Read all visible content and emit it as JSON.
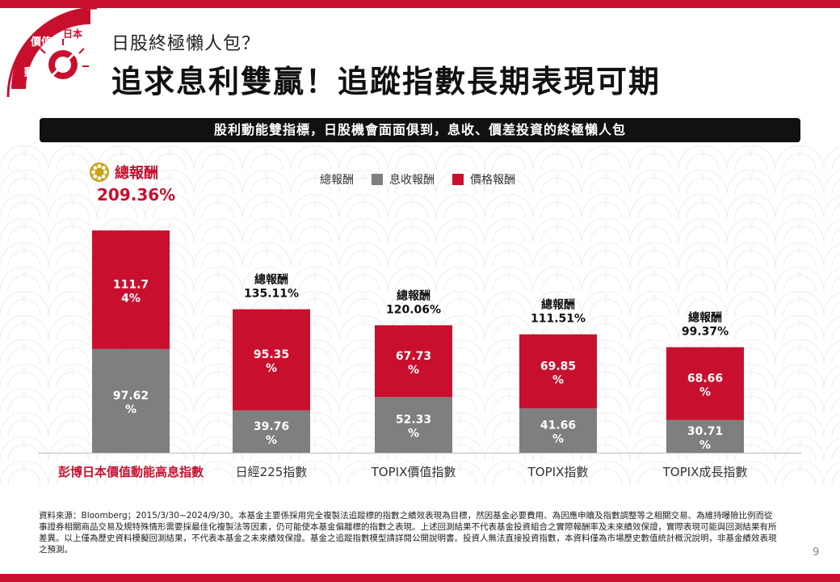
{
  "header": {
    "logo_texts": [
      "價值",
      "日本",
      "動息"
    ],
    "subtitle": "日股終極懶人包？",
    "title": "追求息利雙贏！追蹤指數長期表現可期",
    "banner": "股利動能雙指標，日股機會面面俱到，息收、價差投資的終極懶人包"
  },
  "highlight": {
    "label": "總報酬",
    "value": "209.36%"
  },
  "legend": {
    "title": "總報酬",
    "items": [
      {
        "name": "息收報酬",
        "color": "#7f7f7f"
      },
      {
        "name": "價格報酬",
        "color": "#c8102e"
      }
    ]
  },
  "colors": {
    "accent": "#c8102e",
    "gray": "#7f7f7f"
  },
  "chart_data": {
    "type": "bar",
    "stacked": true,
    "title": "總報酬",
    "categories": [
      "彭博日本價值動能高息指數",
      "日經225指數",
      "TOPIX價值指數",
      "TOPIX指數",
      "TOPIX成長指數"
    ],
    "series": [
      {
        "name": "息收報酬",
        "values": [
          97.62,
          39.76,
          52.33,
          41.66,
          30.71
        ]
      },
      {
        "name": "價格報酬",
        "values": [
          111.74,
          95.35,
          67.73,
          69.85,
          68.66
        ]
      }
    ],
    "value_labels": {
      "息收報酬": [
        [
          "97.62",
          "%"
        ],
        [
          "39.76",
          "%"
        ],
        [
          "52.33",
          "%"
        ],
        [
          "41.66",
          "%"
        ],
        [
          "30.71",
          "%"
        ]
      ],
      "價格報酬": [
        [
          "111.7",
          "4%"
        ],
        [
          "95.35",
          "%"
        ],
        [
          "67.73",
          "%"
        ],
        [
          "69.85",
          "%"
        ],
        [
          "68.66",
          "%"
        ]
      ]
    },
    "totals": [
      209.36,
      135.11,
      120.06,
      111.51,
      99.37
    ],
    "total_labels": [
      null,
      [
        "總報酬",
        "135.11%"
      ],
      [
        "總報酬",
        "120.06%"
      ],
      [
        "總報酬",
        "111.51%"
      ],
      [
        "總報酬",
        "99.37%"
      ]
    ],
    "ylim": [
      0,
      230
    ],
    "grid": false
  },
  "footnote": "資料來源：Bloomberg；2015/3/30~2024/9/30。本基金主要係採用完全複製法追蹤標的指數之績效表現為目標，然因基金必要費用、為因應申贖及指數調整等之相關交易、為維持曝險比例而從事證券相關商品交易及規特殊情形需要採最佳化複製法等因素，仍可能使本基金偏離標的指數之表現。上述回測結果不代表基金投資組合之實際報酬率及未來績效保證，實際表現可能與回測結果有所差異。以上僅為歷史資料模擬回測結果，不代表本基金之未來績效保證。基金之追蹤指數模型請詳閱公開說明書。投資人無法直接投資指數，本資料僅為市場歷史數值統計概況說明，非基金績效表現之預測。",
  "page_number": "9"
}
